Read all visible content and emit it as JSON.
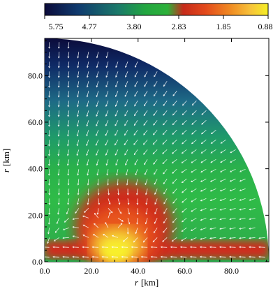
{
  "chart_data": {
    "type": "heatmap",
    "colorbar": {
      "tick_labels": [
        "5.75",
        "4.77",
        "3.80",
        "2.83",
        "1.85",
        "0.88"
      ],
      "range": [
        5.75,
        0.88
      ],
      "colors": [
        "#0b0b3a",
        "#0f3a6e",
        "#1b7a6a",
        "#22a640",
        "#2db13a",
        "#c62a1a",
        "#e34a1b",
        "#f08a22",
        "#f7c23a",
        "#f6ef26"
      ]
    },
    "x_axis": {
      "label_var": "r",
      "label_unit": "[km]",
      "ticks": [
        "0.0",
        "20.0",
        "40.0",
        "60.0",
        "80.0"
      ],
      "range": [
        0,
        96
      ]
    },
    "y_axis": {
      "label_var": "r",
      "label_unit": "[km]",
      "ticks": [
        "0.0",
        "20.0",
        "40.0",
        "60.0",
        "80.0"
      ],
      "range": [
        0,
        96
      ]
    },
    "domain_shape": "quarter-disk",
    "domain_radius_km": 96,
    "overlay": "velocity-vector-field",
    "vector_color": "#ffffff"
  }
}
